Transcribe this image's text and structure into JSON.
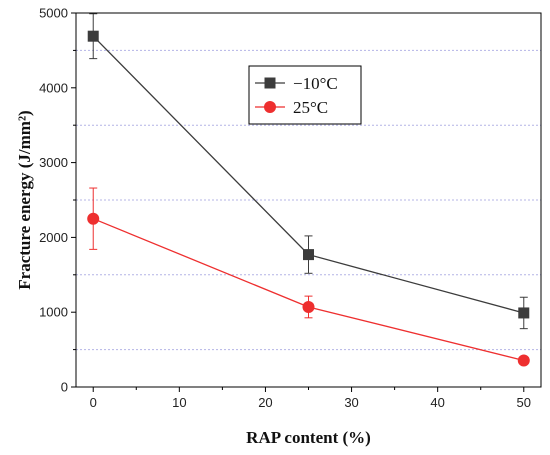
{
  "chart_data": {
    "type": "line",
    "xlabel": "RAP content (%)",
    "ylabel": "Fracture energy (J/mm²)",
    "x_ticks": [
      "0",
      "10",
      "20",
      "30",
      "40",
      "50"
    ],
    "y_ticks": [
      "0",
      "1000",
      "2000",
      "3000",
      "4000",
      "5000"
    ],
    "xlim": [
      -2,
      52
    ],
    "ylim": [
      0,
      5000
    ],
    "grid": "horizontal dashed at 500, 1500, 2500, 3500, 4500",
    "legend_position": "top-center",
    "series": [
      {
        "name": "−10°C",
        "color": "#3c3c3c",
        "marker": "square",
        "x": [
          0,
          25,
          50
        ],
        "y": [
          4690,
          1770,
          990
        ],
        "error": [
          300,
          250,
          210
        ]
      },
      {
        "name": "25°C",
        "color": "#ee2f2f",
        "marker": "circle",
        "x": [
          0,
          25,
          50
        ],
        "y": [
          2250,
          1070,
          355
        ],
        "error": [
          410,
          145,
          0
        ]
      }
    ]
  }
}
